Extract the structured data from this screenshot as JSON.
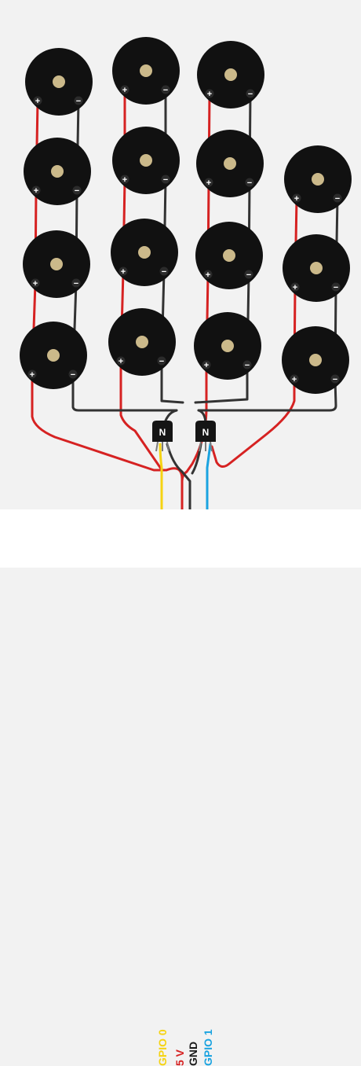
{
  "diagram": {
    "buzzer_columns": [
      4,
      4,
      4,
      3
    ],
    "transistors": [
      {
        "label": "N",
        "drives": "left-half"
      },
      {
        "label": "N",
        "drives": "right-half"
      }
    ],
    "buzzer_terminal_plus": "+",
    "buzzer_terminal_minus": "−"
  },
  "pins": [
    {
      "label": "GPIO 0",
      "color": "#f5d312"
    },
    {
      "label": "5 V",
      "color": "#d62222"
    },
    {
      "label": "GND",
      "color": "#1a1a1a"
    },
    {
      "label": "GPIO 1",
      "color": "#1aa3e0"
    }
  ],
  "colors": {
    "background": "#f2f2f2",
    "buzzer_body": "#111111",
    "buzzer_center": "#cbb98a",
    "wire_positive": "#d62222",
    "wire_negative": "#333333",
    "wire_signal_0": "#f5d312",
    "wire_signal_1": "#1aa3e0"
  }
}
